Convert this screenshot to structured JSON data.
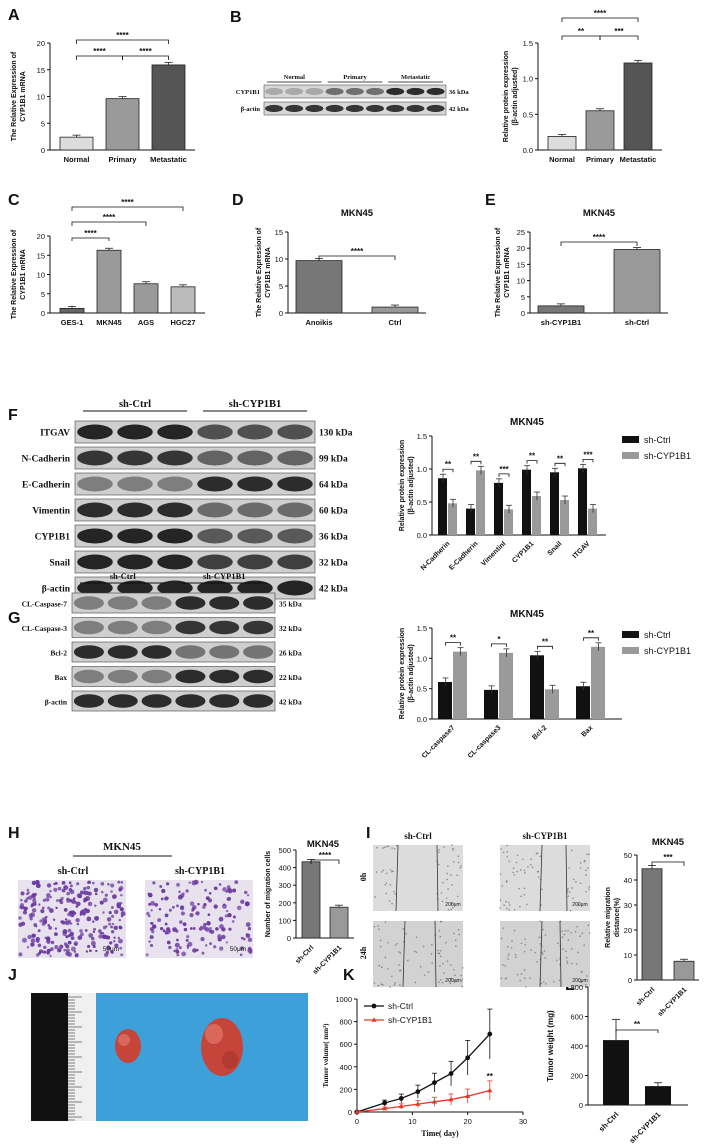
{
  "panel_letters": [
    "A",
    "B",
    "C",
    "D",
    "E",
    "F",
    "G",
    "H",
    "I",
    "J",
    "K",
    "L"
  ],
  "colors": {
    "dark": "#111111",
    "gray": "#9a9a9a",
    "red": "#e23b2e",
    "blot_bg": "#e6e6e6",
    "blot_band": "#1a1a1a",
    "transwell_bg": "#e8e2ee",
    "transwell_cell": "#6a3aa0",
    "scratch_bg": "#d6d6d6",
    "mouse_bg": "#3ea0d8",
    "tumor": "#c6453a"
  },
  "sig": {
    "four": "****",
    "three": "***",
    "two": "**",
    "one": "*"
  },
  "chart_data": [
    {
      "id": "A",
      "type": "bar",
      "ylabel": "The Relative Expression of CYP1B1 mRNA",
      "categories": [
        "Normal",
        "Primary",
        "Metastatic"
      ],
      "values": [
        2.4,
        9.6,
        15.9
      ],
      "ylim": [
        0,
        20
      ],
      "yticks": [
        0,
        5,
        10,
        15,
        20
      ],
      "colors": [
        "#dcdcdc",
        "#9a9a9a",
        "#555555"
      ]
    },
    {
      "id": "B",
      "type": "bar",
      "ylabel": "Relative protein expression (β-actin adjusted)",
      "categories": [
        "Normal",
        "Primary",
        "Metastatic"
      ],
      "values": [
        0.19,
        0.55,
        1.22
      ],
      "ylim": [
        0,
        1.5
      ],
      "yticks": [
        0.0,
        0.5,
        1.0,
        1.5
      ],
      "colors": [
        "#dcdcdc",
        "#9a9a9a",
        "#555555"
      ]
    },
    {
      "id": "C",
      "type": "bar",
      "ylabel": "The Relative Expression of CYP1B1 mRNA",
      "categories": [
        "GES-1",
        "MKN45",
        "AGS",
        "HGC27"
      ],
      "values": [
        1.2,
        16.3,
        7.6,
        6.8
      ],
      "ylim": [
        0,
        20
      ],
      "yticks": [
        0,
        5,
        10,
        15,
        20
      ],
      "colors": [
        "#666666",
        "#9a9a9a",
        "#9a9a9a",
        "#bbbbbb"
      ]
    },
    {
      "id": "D",
      "type": "bar",
      "title": "MKN45",
      "ylabel": "The Relative Expression of CYP1B1 mRNA",
      "categories": [
        "Anoikis",
        "Ctrl"
      ],
      "values": [
        9.7,
        1.1
      ],
      "ylim": [
        0,
        15
      ],
      "yticks": [
        0,
        5,
        10,
        15
      ],
      "colors": [
        "#777777",
        "#999999"
      ]
    },
    {
      "id": "E",
      "type": "bar",
      "title": "MKN45",
      "ylabel": "The Relative Expression of CYP1B1 mRNA",
      "categories": [
        "sh-CYP1B1",
        "sh-Ctrl"
      ],
      "values": [
        2.2,
        19.6
      ],
      "ylim": [
        0,
        25
      ],
      "yticks": [
        0,
        5,
        10,
        15,
        20,
        25
      ],
      "colors": [
        "#777777",
        "#999999"
      ]
    },
    {
      "id": "F",
      "type": "bar",
      "title": "MKN45",
      "ylabel": "Relative protein expression (β-actin adjusted)",
      "categories": [
        "N-Cadherin",
        "E-Cadherin",
        "VimentinI",
        "CYP1B1",
        "Snail",
        "ITGAV"
      ],
      "series": [
        {
          "name": "sh-Ctrl",
          "values": [
            0.86,
            0.4,
            0.79,
            0.99,
            0.95,
            1.01
          ]
        },
        {
          "name": "sh-CYP1B1",
          "values": [
            0.48,
            0.98,
            0.39,
            0.59,
            0.53,
            0.4
          ]
        }
      ],
      "sig": [
        "**",
        "**",
        "***",
        "**",
        "**",
        "***"
      ],
      "ylim": [
        0,
        1.5
      ],
      "yticks": [
        0.0,
        0.5,
        1.0,
        1.5
      ]
    },
    {
      "id": "G",
      "type": "bar",
      "title": "MKN45",
      "ylabel": "Relative protein expression (β-actin adjusted)",
      "categories": [
        "CL-caspase7",
        "CL-caspase3",
        "Bcl-2",
        "Bax"
      ],
      "series": [
        {
          "name": "sh-Ctrl",
          "values": [
            0.61,
            0.48,
            1.05,
            0.54
          ]
        },
        {
          "name": "sh-CYP1B1",
          "values": [
            1.11,
            1.09,
            0.49,
            1.19
          ]
        }
      ],
      "sig": [
        "**",
        "*",
        "**",
        "**"
      ],
      "ylim": [
        0,
        1.5
      ],
      "yticks": [
        0.0,
        0.5,
        1.0,
        1.5
      ]
    },
    {
      "id": "H",
      "type": "bar",
      "title": "MKN45",
      "ylabel": "Number of migration cells",
      "categories": [
        "sh-Ctrl",
        "sh-CYP1B1"
      ],
      "values": [
        433,
        175
      ],
      "ylim": [
        0,
        500
      ],
      "yticks": [
        0,
        100,
        200,
        300,
        400,
        500
      ],
      "colors": [
        "#777777",
        "#999999"
      ]
    },
    {
      "id": "I",
      "type": "bar",
      "title": "MKN45",
      "ylabel": "Relative migration distance(%)",
      "categories": [
        "sh-Ctrl",
        "sh-CYP1B1"
      ],
      "values": [
        44.5,
        7.5
      ],
      "ylim": [
        0,
        50
      ],
      "yticks": [
        0,
        10,
        20,
        30,
        40,
        50
      ],
      "colors": [
        "#777777",
        "#999999"
      ]
    },
    {
      "id": "K",
      "type": "line",
      "xlabel": "Time( day)",
      "ylabel": "Tumor volume( mm³)",
      "x": [
        0,
        5,
        8,
        11,
        14,
        17,
        20,
        24
      ],
      "series": [
        {
          "name": "sh-Ctrl",
          "values": [
            0,
            80,
            120,
            180,
            260,
            340,
            480,
            690
          ]
        },
        {
          "name": "sh-CYP1B1",
          "values": [
            0,
            30,
            50,
            70,
            90,
            110,
            140,
            190
          ]
        }
      ],
      "xlim": [
        0,
        30
      ],
      "ylim": [
        0,
        1000
      ],
      "xticks": [
        0,
        10,
        20,
        30
      ],
      "yticks": [
        0,
        200,
        400,
        600,
        800,
        1000
      ],
      "sig": "**"
    },
    {
      "id": "L",
      "type": "bar",
      "ylabel": "Tumor weight (mg)",
      "categories": [
        "sh-Ctrl",
        "sh-CYP1B1"
      ],
      "values": [
        440,
        128
      ],
      "ylim": [
        0,
        800
      ],
      "yticks": [
        0,
        200,
        400,
        600,
        800
      ],
      "colors": [
        "#111111",
        "#111111"
      ],
      "sig": "**"
    }
  ],
  "blot_B": {
    "groups": [
      "Normal",
      "Primary",
      "Metastatic"
    ],
    "rows": [
      "CYP1B1",
      "β-actin"
    ],
    "sizes": [
      "36 kDa",
      "42 kDa"
    ]
  },
  "blot_F": {
    "groups": [
      "sh-Ctrl",
      "sh-CYP1B1"
    ],
    "rows": [
      "ITGAV",
      "N-Cadherin",
      "E-Cadherin",
      "Vimentin",
      "CYP1B1",
      "Snail",
      "β-actin"
    ],
    "sizes": [
      "130 kDa",
      "99 kDa",
      "64 kDa",
      "60 kDa",
      "36 kDa",
      "32 kDa",
      "42 kDa"
    ]
  },
  "blot_G": {
    "groups": [
      "sh-Ctrl",
      "sh-CYP1B1"
    ],
    "rows": [
      "CL-Caspase-7",
      "CL-Caspase-3",
      "Bcl-2",
      "Bax",
      "β-actin"
    ],
    "sizes": [
      "35 kDa",
      "32 kDa",
      "26 kDa",
      "22 kDa",
      "42 kDa"
    ]
  },
  "panel_H": {
    "title": "MKN45",
    "labels": [
      "sh-Ctrl",
      "sh-CYP1B1"
    ],
    "scale": "50μm"
  },
  "panel_I": {
    "cols": [
      "sh-Ctrl",
      "sh-CYP1B1"
    ],
    "rows": [
      "0h",
      "24h"
    ],
    "scale": "200μm"
  },
  "panel_J": {
    "ruler": [
      "0",
      "1",
      "cm",
      "2",
      "3"
    ]
  }
}
